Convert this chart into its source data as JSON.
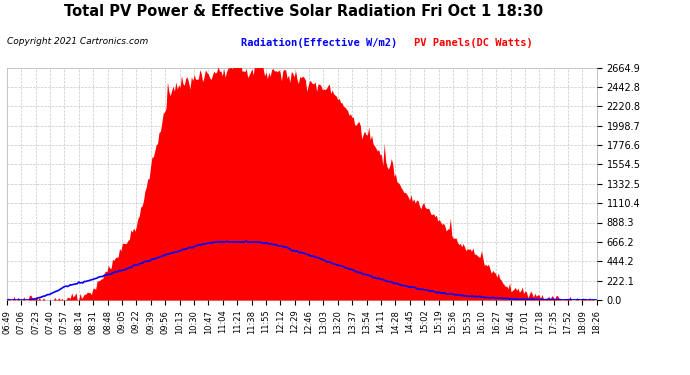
{
  "title": "Total PV Power & Effective Solar Radiation Fri Oct 1 18:30",
  "copyright": "Copyright 2021 Cartronics.com",
  "legend_radiation": "Radiation(Effective W/m2)",
  "legend_pv": "PV Panels(DC Watts)",
  "radiation_color": "blue",
  "pv_color": "red",
  "background_color": "#ffffff",
  "plot_bg_color": "#ffffff",
  "grid_color": "#c8c8c8",
  "yticks": [
    0.0,
    222.1,
    444.2,
    666.2,
    888.3,
    1110.4,
    1332.5,
    1554.5,
    1776.6,
    1998.7,
    2220.8,
    2442.8,
    2664.9
  ],
  "ylim": [
    0,
    2664.9
  ],
  "time_labels": [
    "06:49",
    "07:06",
    "07:23",
    "07:40",
    "07:57",
    "08:14",
    "08:31",
    "08:48",
    "09:05",
    "09:22",
    "09:39",
    "09:56",
    "10:13",
    "10:30",
    "10:47",
    "11:04",
    "11:21",
    "11:38",
    "11:55",
    "12:12",
    "12:29",
    "12:46",
    "13:03",
    "13:20",
    "13:37",
    "13:54",
    "14:11",
    "14:28",
    "14:45",
    "15:02",
    "15:19",
    "15:36",
    "15:53",
    "16:10",
    "16:27",
    "16:44",
    "17:01",
    "17:18",
    "17:35",
    "17:52",
    "18:09",
    "18:26"
  ],
  "n_points": 420
}
